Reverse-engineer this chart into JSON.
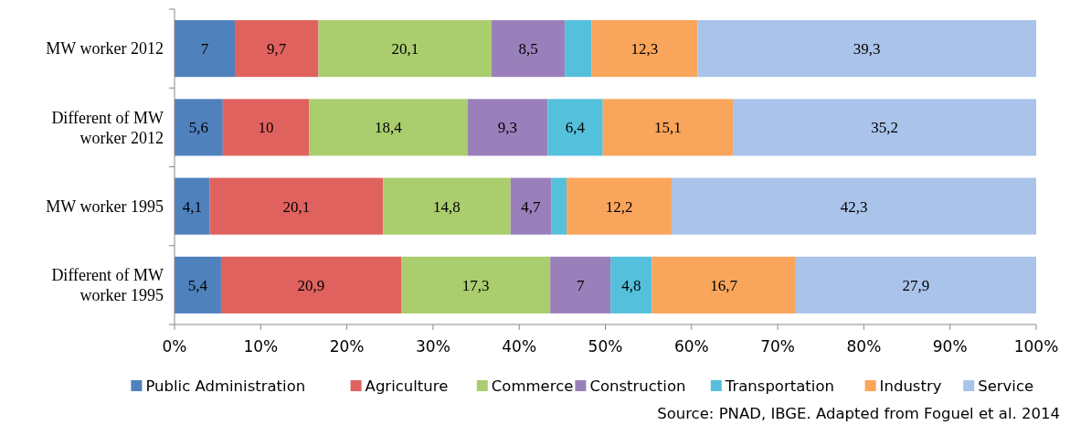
{
  "chart_data": {
    "type": "bar",
    "orientation": "horizontal",
    "stacked": true,
    "categories": [
      "MW worker 2012",
      "Different of MW worker 2012",
      "MW worker 1995",
      "Different of MW worker 1995"
    ],
    "series": [
      {
        "name": "Public Administration",
        "color": "#4f81bd",
        "values": [
          7,
          5.6,
          4.1,
          5.4
        ],
        "value_labels": [
          "7",
          "5,6",
          "4,1",
          "5,4"
        ]
      },
      {
        "name": "Agriculture",
        "color": "#e0625e",
        "values": [
          9.7,
          10,
          20.1,
          20.9
        ],
        "value_labels": [
          "9,7",
          "10",
          "20,1",
          "20,9"
        ]
      },
      {
        "name": "Commerce",
        "color": "#aacd6e",
        "values": [
          20.1,
          18.4,
          14.8,
          17.3
        ],
        "value_labels": [
          "20,1",
          "18,4",
          "14,8",
          "17,3"
        ]
      },
      {
        "name": "Construction",
        "color": "#9a80bb",
        "values": [
          8.5,
          9.3,
          4.7,
          7
        ],
        "value_labels": [
          "8,5",
          "9,3",
          "4,7",
          "7"
        ]
      },
      {
        "name": "Transportation",
        "color": "#55c0db",
        "values": [
          3.1,
          6.4,
          1.8,
          4.8
        ],
        "value_labels": [
          null,
          "6,4",
          null,
          "4,8"
        ]
      },
      {
        "name": "Industry",
        "color": "#f9a55b",
        "values": [
          12.3,
          15.1,
          12.2,
          16.7
        ],
        "value_labels": [
          "12,3",
          "15,1",
          "12,2",
          "16,7"
        ]
      },
      {
        "name": "Service",
        "color": "#a9c3ea",
        "values": [
          39.3,
          35.2,
          42.3,
          27.9
        ],
        "value_labels": [
          "39,3",
          "35,2",
          "42,3",
          "27,9"
        ]
      }
    ],
    "xlim": [
      0,
      100
    ],
    "xticks": [
      {
        "value": 0,
        "label": "0%"
      },
      {
        "value": 10,
        "label": "10%"
      },
      {
        "value": 20,
        "label": "20%"
      },
      {
        "value": 30,
        "label": "30%"
      },
      {
        "value": 40,
        "label": "40%"
      },
      {
        "value": 50,
        "label": "50%"
      },
      {
        "value": 60,
        "label": "60%"
      },
      {
        "value": 70,
        "label": "70%"
      },
      {
        "value": 80,
        "label": "80%"
      },
      {
        "value": 90,
        "label": "90%"
      },
      {
        "value": 100,
        "label": "100%"
      }
    ],
    "legend": "bottom",
    "annotations": [
      "Source: PNAD, IBGE. Adapted from Foguel et al. 2014"
    ]
  }
}
